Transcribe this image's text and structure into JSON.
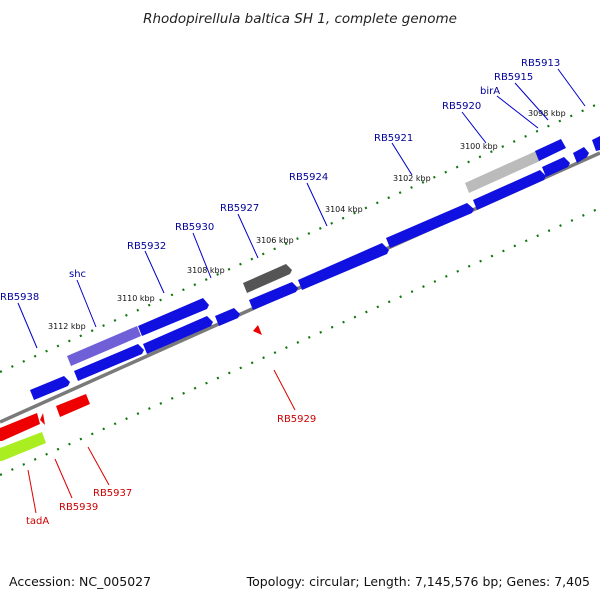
{
  "title": "Rhodopirellula baltica SH 1, complete genome",
  "footer": {
    "accession": "Accession: NC_005027",
    "summary": "Topology: circular; Length: 7,145,576 bp; Genes: 7,405"
  },
  "colors": {
    "forward_gene": "#1010e0",
    "reverse_gene": "#ee0000",
    "backbone": "#888888",
    "tick": "#117711",
    "forward_label": "#000099",
    "reverse_label": "#cc0000",
    "leader_forward": "#0000cc",
    "leader_reverse": "#dd0000"
  },
  "scale_labels": [
    "3098 kbp",
    "3100 kbp",
    "3102 kbp",
    "3104 kbp",
    "3106 kbp",
    "3108 kbp",
    "3110 kbp",
    "3112 kbp"
  ],
  "forward_labels": [
    "RB5913",
    "RB5915",
    "birA",
    "RB5920",
    "RB5921",
    "RB5924",
    "RB5927",
    "RB5930",
    "RB5932",
    "shc",
    "RB5938"
  ],
  "reverse_labels": [
    "RB5929",
    "RB5937",
    "RB5939",
    "tadA"
  ]
}
